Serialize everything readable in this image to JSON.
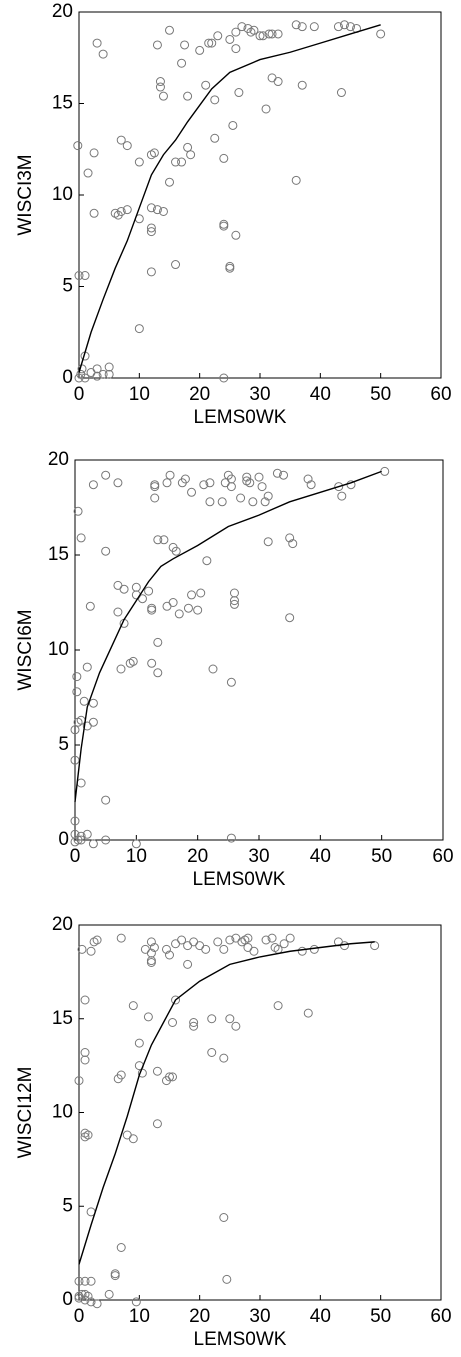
{
  "chart_data": [
    {
      "type": "scatter",
      "x_label": "LEMS0WK",
      "y_label": "WISCI3M",
      "xlim": [
        0,
        60
      ],
      "ylim": [
        0,
        20
      ],
      "xticks": [
        0,
        10,
        20,
        30,
        40,
        50,
        60
      ],
      "yticks": [
        0,
        5,
        10,
        15,
        20
      ],
      "x": [
        0,
        0.3,
        0.5,
        1,
        1,
        2,
        3,
        3,
        4,
        5,
        5,
        0,
        1,
        -0.2,
        1.5,
        2.5,
        2.5,
        3,
        4,
        6,
        6.5,
        7,
        7,
        8,
        8,
        10,
        10,
        10,
        12,
        12,
        12,
        12,
        12.5,
        12,
        13,
        13,
        13.5,
        13.5,
        14,
        14,
        15,
        15,
        16,
        16,
        17,
        17,
        17.5,
        18,
        18,
        18.5,
        20,
        21,
        21.5,
        22,
        22.5,
        22.5,
        23,
        24,
        24,
        24,
        24,
        25,
        25,
        25,
        25.5,
        26,
        26,
        26,
        26.5,
        27,
        28,
        28.5,
        29,
        30,
        30.5,
        31,
        31.5,
        32,
        32,
        33,
        33,
        36,
        36,
        37,
        37,
        39,
        43,
        43.5,
        44,
        45,
        46,
        50
      ],
      "y": [
        0,
        0.2,
        0.5,
        1.2,
        0,
        0.3,
        0.5,
        0.1,
        0.2,
        0.6,
        0.2,
        5.6,
        5.6,
        12.7,
        11.2,
        9,
        12.3,
        18.3,
        17.7,
        9,
        8.9,
        13,
        9.1,
        12.7,
        9.2,
        8.7,
        11.8,
        2.7,
        8.2,
        8,
        9.3,
        12.2,
        12.3,
        5.8,
        9.2,
        18.2,
        16.2,
        15.9,
        15.4,
        9.1,
        19,
        10.7,
        11.8,
        6.2,
        11.8,
        17.2,
        18.2,
        12.6,
        15.4,
        12.2,
        17.9,
        16,
        18.3,
        18.3,
        15.2,
        13.1,
        18.7,
        8.3,
        8.4,
        12,
        0,
        6,
        6.1,
        18.5,
        13.8,
        7.8,
        18.9,
        18,
        15.6,
        19.2,
        19.1,
        18.9,
        19,
        18.7,
        18.7,
        14.7,
        18.8,
        18.8,
        16.4,
        16.2,
        18.8,
        19.3,
        10.8,
        19.2,
        16,
        19.2,
        19.2,
        15.6,
        19.3,
        19.2,
        19.1,
        18.8
      ],
      "fit": {
        "x": [
          0,
          2,
          4,
          6,
          8,
          10,
          12,
          14,
          16,
          18,
          20,
          22,
          25,
          30,
          35,
          40,
          45,
          50
        ],
        "y": [
          0.3,
          2.5,
          4.3,
          6,
          7.5,
          9.3,
          11.1,
          12.2,
          13,
          14,
          14.9,
          15.8,
          16.7,
          17.4,
          17.8,
          18.3,
          18.8,
          19.3
        ]
      }
    },
    {
      "type": "scatter",
      "x_label": "LEMS0WK",
      "y_label": "WISCI6M",
      "xlim": [
        0,
        60
      ],
      "ylim": [
        0,
        20
      ],
      "xticks": [
        0,
        10,
        20,
        30,
        40,
        50,
        60
      ],
      "yticks": [
        0,
        5,
        10,
        15,
        20
      ],
      "x": [
        0,
        0,
        0.3,
        0.3,
        0.5,
        1,
        0.5,
        1,
        1,
        0,
        0,
        0.5,
        1,
        1,
        2,
        3,
        5,
        10,
        0,
        1.5,
        2,
        2,
        2.5,
        3,
        3,
        3,
        5,
        5,
        5,
        7,
        7,
        7,
        7.5,
        8,
        8,
        9,
        9.5,
        10,
        10,
        11,
        12,
        12.5,
        12.5,
        12.5,
        13,
        13,
        13,
        13.5,
        13.5,
        13.5,
        14.5,
        15,
        15,
        15.5,
        16,
        16,
        16.5,
        17,
        17.5,
        18,
        18.5,
        19,
        19,
        20,
        20.5,
        21,
        21.5,
        22,
        22,
        22.5,
        24,
        24.5,
        25,
        25.5,
        25.5,
        25.5,
        25.5,
        26,
        26,
        26,
        27,
        28,
        28,
        28.5,
        29,
        30,
        30.5,
        31,
        31.5,
        31.5,
        33,
        34,
        35,
        35,
        35.5,
        38,
        38.5,
        43,
        43.5,
        45,
        50.5
      ],
      "y": [
        4.2,
        5.8,
        8.6,
        7.8,
        17.3,
        15.9,
        6.2,
        6.3,
        3,
        1,
        0.3,
        0,
        0.2,
        0,
        0.3,
        -0.2,
        0,
        -0.2,
        -0.1,
        7.3,
        9.1,
        6,
        12.3,
        6.2,
        7.2,
        18.7,
        19.2,
        15.2,
        2.1,
        13.4,
        12,
        18.8,
        9,
        11.4,
        13.2,
        9.3,
        9.4,
        13.3,
        12.9,
        12.7,
        13.1,
        12.2,
        12.1,
        9.3,
        18,
        18.6,
        18.7,
        15.8,
        8.8,
        10.4,
        15.8,
        12.3,
        18.8,
        19.2,
        12.5,
        15.4,
        15.2,
        11.9,
        18.8,
        19,
        12.2,
        12.9,
        18.3,
        12.1,
        13,
        18.7,
        14.7,
        17.8,
        18.8,
        9,
        17.8,
        18.8,
        19.2,
        18.6,
        19,
        8.3,
        0.1,
        13,
        12.6,
        12.4,
        18,
        19.1,
        18.9,
        18.8,
        17.8,
        19.1,
        18.6,
        17.8,
        18.1,
        15.7,
        19.3,
        19.2,
        11.7,
        15.9,
        15.6,
        19,
        18.7,
        18.6,
        18.1,
        18.7,
        19.4
      ],
      "fit": {
        "x": [
          0,
          1,
          2,
          4,
          6,
          8,
          10,
          12,
          14,
          16,
          20,
          25,
          30,
          35,
          40,
          45,
          50
        ],
        "y": [
          2,
          4.8,
          7,
          8.8,
          10.2,
          11.6,
          12.6,
          13.6,
          14.4,
          14.8,
          15.5,
          16.5,
          17.1,
          17.8,
          18.3,
          18.8,
          19.4
        ]
      }
    },
    {
      "type": "scatter",
      "x_label": "LEMS0WK",
      "y_label": "WISCI12M",
      "xlim": [
        0,
        60
      ],
      "ylim": [
        0,
        20
      ],
      "xticks": [
        0,
        10,
        20,
        30,
        40,
        50,
        60
      ],
      "yticks": [
        0,
        5,
        10,
        15,
        20
      ],
      "x": [
        0,
        0,
        0,
        0.5,
        1,
        1,
        1,
        1.5,
        2,
        2,
        3,
        0,
        0.5,
        1,
        1,
        1,
        1,
        1,
        1.5,
        2,
        2,
        2.5,
        3,
        5,
        6,
        6,
        6.5,
        7,
        7,
        7,
        8,
        9,
        9,
        9.5,
        10,
        10,
        10.5,
        11,
        11.5,
        12,
        12,
        12,
        12,
        12.5,
        13,
        13,
        14.5,
        14.5,
        15,
        15,
        15.5,
        15.5,
        16,
        16,
        17,
        18,
        18,
        19,
        19,
        19,
        20,
        21,
        22,
        22,
        23,
        24,
        24,
        24,
        24.5,
        25,
        25,
        26,
        26,
        27,
        27.5,
        28,
        28,
        29,
        31,
        32,
        32.5,
        33,
        33,
        34,
        35,
        37,
        38,
        39,
        43,
        44,
        49
      ],
      "y": [
        0.1,
        1,
        0.2,
        0.3,
        0.3,
        0,
        1,
        0.2,
        1,
        -0.1,
        -0.2,
        11.7,
        18.7,
        16,
        13.2,
        12.8,
        8.9,
        8.7,
        8.8,
        18.6,
        4.7,
        19.1,
        19.2,
        0.3,
        1.3,
        1.4,
        11.8,
        12,
        2.8,
        19.3,
        8.8,
        8.6,
        15.7,
        -0.1,
        13.7,
        12.5,
        12.1,
        18.7,
        15.1,
        18.1,
        18,
        18.5,
        19.1,
        18.8,
        12.2,
        9.4,
        11.7,
        18.7,
        18.4,
        11.9,
        11.9,
        14.8,
        16,
        19,
        19.2,
        18.9,
        17.9,
        14.8,
        14.6,
        19.1,
        18.9,
        18.7,
        13.2,
        15,
        19.1,
        4.4,
        12.9,
        18.7,
        1.1,
        15,
        19.2,
        14.6,
        19.3,
        19.1,
        19.2,
        19.3,
        18.8,
        18.6,
        19.2,
        19.3,
        18.8,
        15.7,
        18.7,
        19,
        19.3,
        18.6,
        15.3,
        18.7,
        19.1,
        18.9,
        18.9
      ],
      "fit": {
        "x": [
          0,
          2,
          4,
          6,
          8,
          10,
          12,
          14,
          16,
          20,
          25,
          30,
          35,
          40,
          45,
          49
        ],
        "y": [
          1.9,
          4,
          6,
          7.8,
          9.8,
          12,
          13.6,
          14.8,
          16,
          17,
          17.9,
          18.3,
          18.6,
          18.8,
          19,
          19.1
        ]
      }
    }
  ]
}
